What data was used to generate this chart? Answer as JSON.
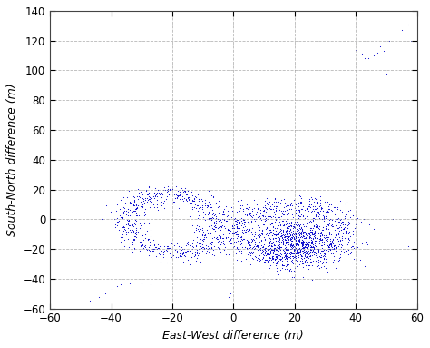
{
  "xlabel": "East-West difference (m)",
  "ylabel": "South-North difference (m)",
  "xlim": [
    -60,
    60
  ],
  "ylim": [
    -60,
    140
  ],
  "xticks": [
    -60,
    -40,
    -20,
    0,
    20,
    40,
    60
  ],
  "yticks": [
    -60,
    -40,
    -20,
    0,
    20,
    40,
    60,
    80,
    100,
    120,
    140
  ],
  "dot_color": "#0000cc",
  "dot_size": 2.5,
  "background_color": "#ffffff",
  "grid_color": "#999999",
  "grid_style": "--",
  "seed": 7
}
